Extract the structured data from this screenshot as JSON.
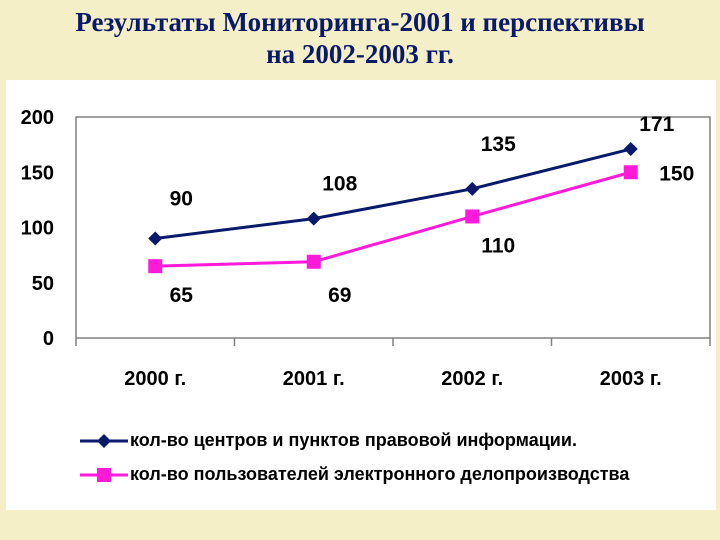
{
  "title": {
    "line1": "Результаты Мониторинга-2001 и  перспективы",
    "line2": "на 2002-2003 гг."
  },
  "colors": {
    "background": "#f5efc8",
    "title": "#0a1a6b",
    "series1": "#0a1a6b",
    "series2": "#ff1ad9"
  },
  "chart_data": {
    "type": "line",
    "categories": [
      "2000 г.",
      "2001 г.",
      "2002 г.",
      "2003 г."
    ],
    "series": [
      {
        "name": "кол-во центров и пунктов правовой информации.",
        "values": [
          90,
          108,
          135,
          171
        ],
        "marker": "diamond",
        "color": "#0a1a6b"
      },
      {
        "name": "кол-во пользователей электронного делопроизводства",
        "values": [
          65,
          69,
          110,
          150
        ],
        "marker": "square",
        "color": "#ff1ad9"
      }
    ],
    "y_ticks": [
      "0",
      "50",
      "100",
      "150",
      "200"
    ],
    "ylim": [
      0,
      200
    ],
    "grid": false,
    "legend_position": "bottom",
    "title": "",
    "xlabel": "",
    "ylabel": ""
  }
}
